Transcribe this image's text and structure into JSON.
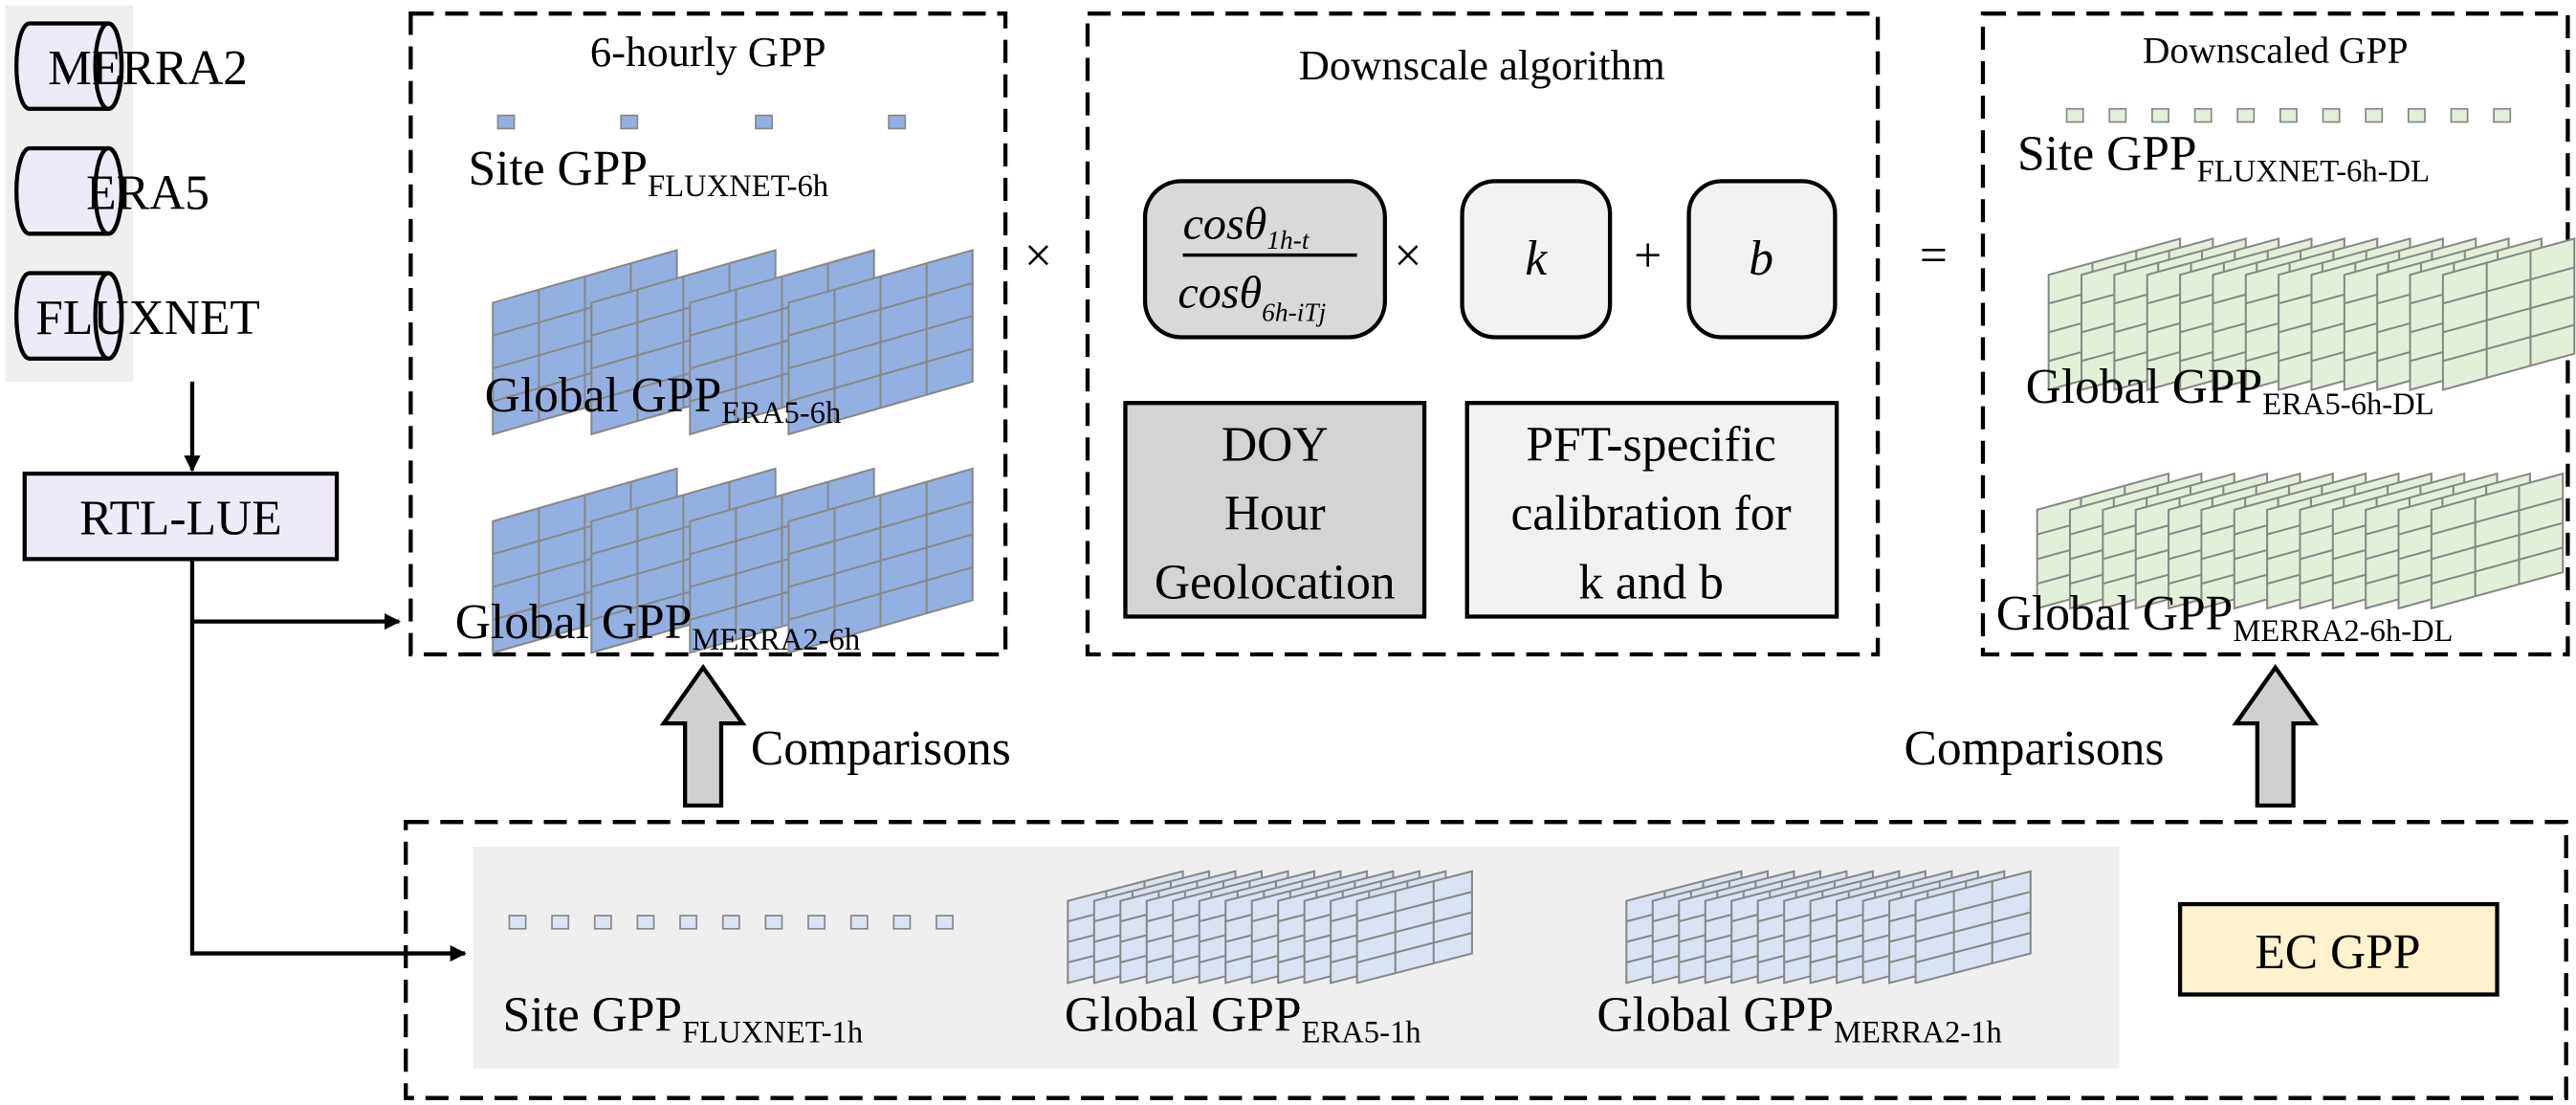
{
  "sources": {
    "items": [
      "MERRA2",
      "ERA5",
      "FLUXNET"
    ]
  },
  "model": "RTL-LUE",
  "six_hourly": {
    "title": "6-hourly GPP",
    "site": {
      "main": "Site GPP",
      "sub": "FLUXNET-6h"
    },
    "era5": {
      "main": "Global GPP",
      "sub": "ERA5-6h"
    },
    "merra2": {
      "main": "Global GPP",
      "sub": "MERRA2-6h"
    }
  },
  "operators": {
    "times": "×",
    "plus": "+",
    "equals": "="
  },
  "downscale": {
    "title": "Downscale algorithm",
    "numerator": {
      "main": "cosθ",
      "sub": "1h-t"
    },
    "denominator": {
      "main": "cosθ",
      "sub": "6h-iTj"
    },
    "k": "k",
    "b": "b",
    "inputs": [
      "DOY",
      "Hour",
      "Geolocation"
    ],
    "calibration": [
      "PFT-specific",
      "calibration for",
      "k and b"
    ]
  },
  "downscaled": {
    "title": "Downscaled GPP",
    "site": {
      "main": "Site GPP",
      "sub": "FLUXNET-6h-DL"
    },
    "era5": {
      "main": "Global GPP",
      "sub": "ERA5-6h-DL"
    },
    "merra2": {
      "main": "Global GPP",
      "sub": "MERRA2-6h-DL"
    }
  },
  "comparisons": "Comparisons",
  "hourly": {
    "site": {
      "main": "Site GPP",
      "sub": "FLUXNET-1h"
    },
    "era5": {
      "main": "Global GPP",
      "sub": "ERA5-1h"
    },
    "merra2": {
      "main": "Global GPP",
      "sub": "MERRA2-1h"
    },
    "ec": "EC GPP"
  },
  "colors": {
    "blue": "#94b0e0",
    "green": "#e2f0d9",
    "lavender": "#dae3f3",
    "ec": "#fff2cc",
    "model": "#efeaf7"
  }
}
